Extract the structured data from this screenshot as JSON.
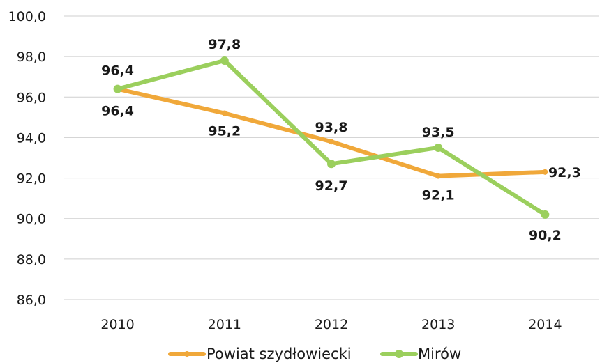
{
  "chart_data": {
    "type": "line",
    "title": "",
    "xlabel": "",
    "ylabel": "",
    "x": [
      "2010",
      "2011",
      "2012",
      "2013",
      "2014"
    ],
    "ylim": [
      86,
      100
    ],
    "yticks": [
      "86,0",
      "88,0",
      "90,0",
      "92,0",
      "94,0",
      "96,0",
      "98,0",
      "100,0"
    ],
    "grid": true,
    "legend_position": "bottom",
    "series": [
      {
        "name": "Powiat szydłowiecki",
        "color": "#f0a83a",
        "values": [
          96.4,
          95.2,
          93.8,
          92.1,
          92.3
        ],
        "labels": [
          "96,4",
          "95,2",
          "93,8",
          "92,1",
          "92,3"
        ]
      },
      {
        "name": "Mirów",
        "color": "#9bcf5d",
        "values": [
          96.4,
          97.8,
          92.7,
          93.5,
          90.2
        ],
        "labels": [
          "96,4",
          "97,8",
          "92,7",
          "93,5",
          "90,2"
        ]
      }
    ]
  }
}
